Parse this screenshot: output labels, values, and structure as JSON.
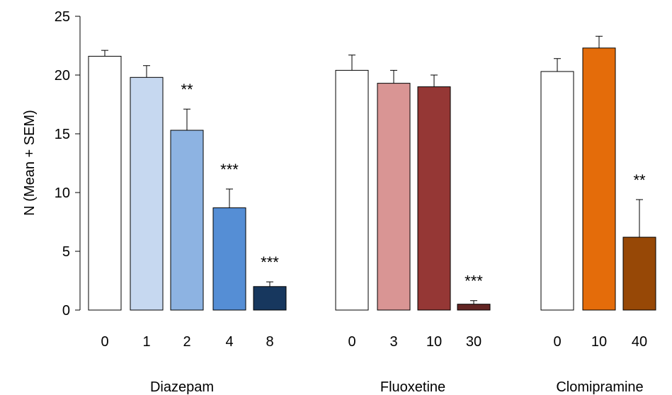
{
  "chart_data": {
    "type": "bar",
    "title": "",
    "ylabel": "N (Mean + SEM)",
    "ylim": [
      0,
      25
    ],
    "yticks": [
      0,
      5,
      10,
      15,
      20,
      25
    ],
    "grid": false,
    "groups": [
      {
        "name": "Diazepam",
        "categories": [
          "0",
          "1",
          "2",
          "4",
          "8"
        ],
        "values": [
          21.6,
          19.8,
          15.3,
          8.7,
          2.0
        ],
        "sem": [
          0.5,
          1.0,
          1.8,
          1.6,
          0.4
        ],
        "significance": [
          "",
          "",
          "**",
          "***",
          "***"
        ],
        "colors": [
          "#ffffff",
          "#c6d8f0",
          "#8db3e2",
          "#558ed5",
          "#17375e"
        ]
      },
      {
        "name": "Fluoxetine",
        "categories": [
          "0",
          "3",
          "10",
          "30"
        ],
        "values": [
          20.4,
          19.3,
          19.0,
          0.5
        ],
        "sem": [
          1.3,
          1.1,
          1.0,
          0.3
        ],
        "significance": [
          "",
          "",
          "",
          "***"
        ],
        "colors": [
          "#ffffff",
          "#d99594",
          "#953735",
          "#632523"
        ]
      },
      {
        "name": "Clomipramine",
        "categories": [
          "0",
          "10",
          "40"
        ],
        "values": [
          20.3,
          22.3,
          6.2
        ],
        "sem": [
          1.1,
          1.0,
          3.2
        ],
        "significance": [
          "",
          "",
          "**"
        ],
        "colors": [
          "#ffffff",
          "#e46c0a",
          "#974806"
        ]
      }
    ]
  }
}
